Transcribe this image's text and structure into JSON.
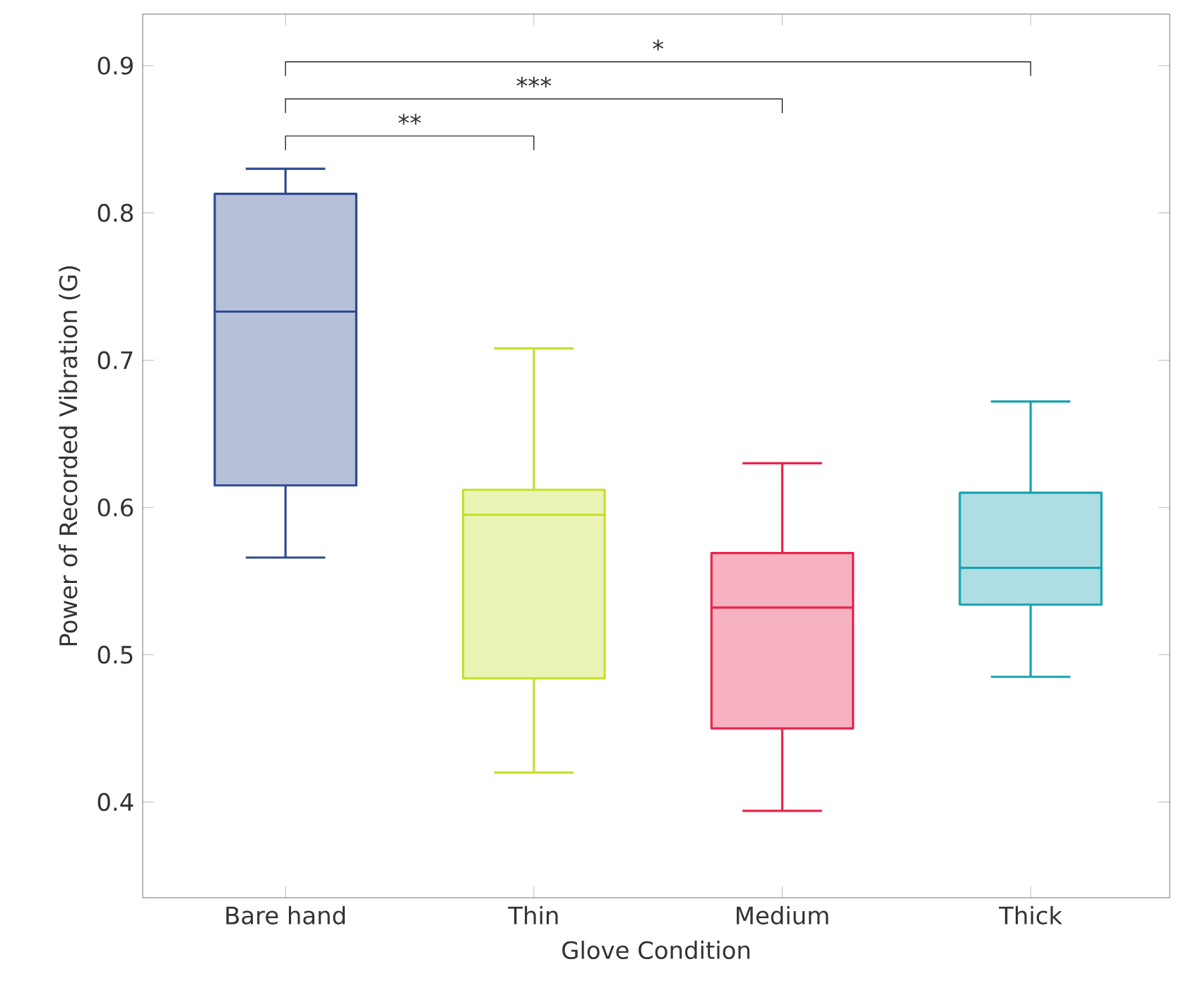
{
  "chart_data": {
    "type": "box",
    "xlabel": "Glove Condition",
    "ylabel": "Power of Recorded Vibration (G)",
    "categories": [
      "Bare hand",
      "Thin",
      "Medium",
      "Thick"
    ],
    "colors": [
      "#2e4a8f",
      "#c5e02a",
      "#e8244f",
      "#17a2b0"
    ],
    "boxes": [
      {
        "low": 0.566,
        "q1": 0.615,
        "median": 0.733,
        "q3": 0.813,
        "high": 0.83
      },
      {
        "low": 0.42,
        "q1": 0.484,
        "median": 0.595,
        "q3": 0.612,
        "high": 0.708
      },
      {
        "low": 0.394,
        "q1": 0.45,
        "median": 0.532,
        "q3": 0.569,
        "high": 0.63
      },
      {
        "low": 0.485,
        "q1": 0.534,
        "median": 0.559,
        "q3": 0.61,
        "high": 0.672
      }
    ],
    "ylim": [
      0.335,
      0.935
    ],
    "yticks": [
      0.4,
      0.5,
      0.6,
      0.7,
      0.8,
      0.9
    ],
    "annotations": [
      "**",
      "***",
      "*"
    ]
  }
}
